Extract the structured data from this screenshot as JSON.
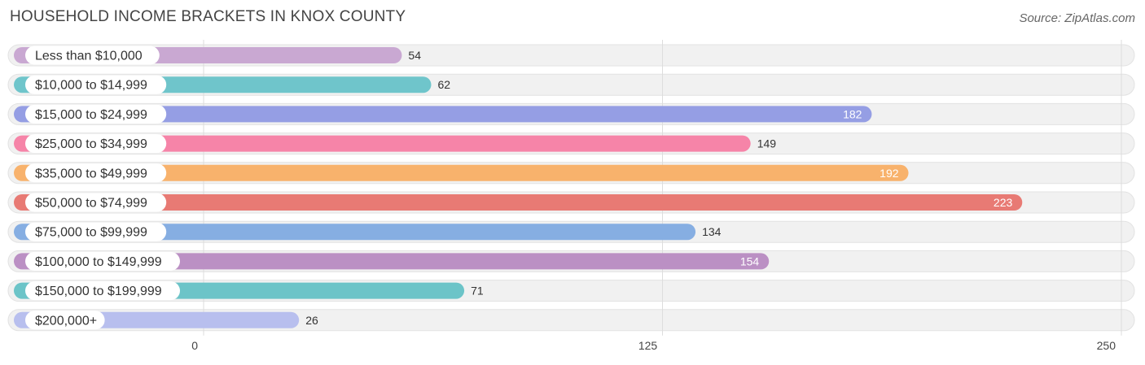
{
  "header": {
    "title": "HOUSEHOLD INCOME BRACKETS IN KNOX COUNTY",
    "source": "Source: ZipAtlas.com"
  },
  "chart_data": {
    "type": "bar",
    "orientation": "horizontal",
    "title": "HOUSEHOLD INCOME BRACKETS IN KNOX COUNTY",
    "categories": [
      "Less than $10,000",
      "$10,000 to $14,999",
      "$15,000 to $24,999",
      "$25,000 to $34,999",
      "$35,000 to $49,999",
      "$50,000 to $74,999",
      "$75,000 to $99,999",
      "$100,000 to $149,999",
      "$150,000 to $199,999",
      "$200,000+"
    ],
    "values": [
      54,
      62,
      182,
      149,
      192,
      223,
      134,
      154,
      71,
      26
    ],
    "colors": [
      "#c9a8d2",
      "#6fc5cb",
      "#959ee4",
      "#f684a8",
      "#f8b26c",
      "#e87a74",
      "#86aee2",
      "#bb90c4",
      "#6cc4c8",
      "#b8bfee"
    ],
    "xlim": [
      0,
      250
    ],
    "xticks": [
      0,
      125,
      250
    ],
    "grid": true
  }
}
